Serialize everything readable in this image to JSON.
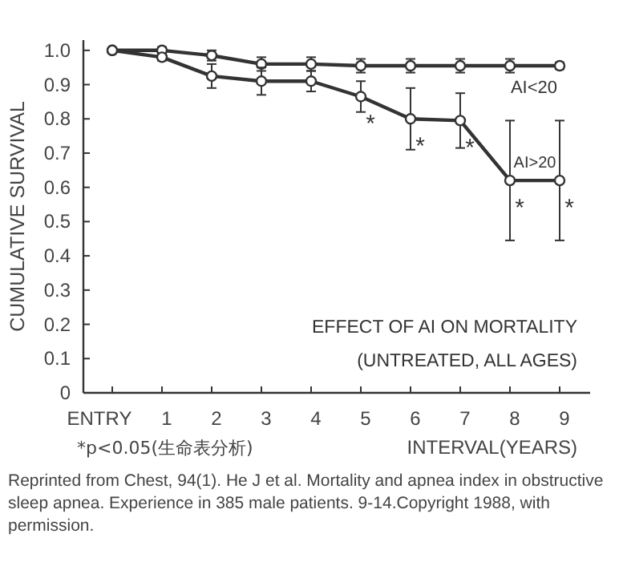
{
  "chart_data": {
    "type": "line",
    "title": "EFFECT OF AI ON MORTALITY",
    "subtitle": "(UNTREATED, ALL AGES)",
    "xlabel": "INTERVAL(YEARS)",
    "ylabel": "CUMULATIVE SURVIVAL",
    "categories": [
      "ENTRY",
      "1",
      "2",
      "3",
      "4",
      "5",
      "6",
      "7",
      "8",
      "9"
    ],
    "series": [
      {
        "name": "AI<20",
        "color": "#333333",
        "values": [
          1.0,
          1.0,
          0.985,
          0.96,
          0.96,
          0.955,
          0.955,
          0.955,
          0.955,
          0.955
        ],
        "errors": [
          null,
          0.01,
          0.015,
          0.02,
          0.02,
          0.02,
          0.02,
          0.02,
          0.02,
          0.01
        ]
      },
      {
        "name": "AI>20",
        "color": "#333333",
        "values": [
          1.0,
          0.98,
          0.925,
          0.91,
          0.91,
          0.865,
          0.8,
          0.795,
          0.62,
          0.62
        ],
        "errors": [
          null,
          0.01,
          0.035,
          0.04,
          0.03,
          0.045,
          0.09,
          0.08,
          0.175,
          0.175
        ]
      }
    ],
    "ylim": [
      0,
      1.03
    ],
    "yticks": [
      0,
      0.1,
      0.2,
      0.3,
      0.4,
      0.5,
      0.6,
      0.7,
      0.8,
      0.9,
      {
        "value": 1,
        "label": "1.0"
      }
    ],
    "grid": false,
    "marker": "circle",
    "line_style": "solid",
    "annotations": [
      {
        "text": "*",
        "x": "5",
        "y": 0.865
      },
      {
        "text": "*",
        "x": "6",
        "y": 0.8
      },
      {
        "text": "*",
        "x": "7",
        "y": 0.795
      },
      {
        "text": "*",
        "x": "8",
        "y": 0.62
      },
      {
        "text": "*",
        "x": "9",
        "y": 0.62
      },
      "*p<0.05(生命表分析)",
      "Reprinted from Chest, 94(1). He J et al. Mortality and apnea index in obstructive sleep apnea. Experience in 385 male patients. 9-14.Copyright 1988, with permission."
    ]
  }
}
